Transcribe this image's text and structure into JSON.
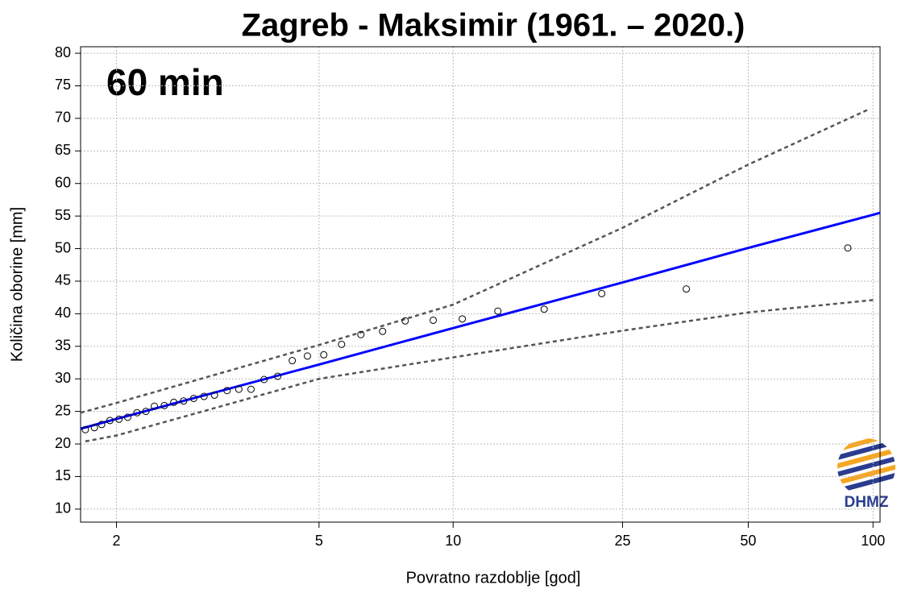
{
  "chart_data": {
    "type": "line",
    "title": "Zagreb - Maksimir (1961. – 2020.)",
    "annotation": "60 min",
    "logo_text": "DHMZ",
    "xlabel": "Povratno razdoblje [god]",
    "ylabel": "Količina oborine [mm]",
    "xscale": "gumbel",
    "xlim": [
      1.75,
      104
    ],
    "xticks": [
      2,
      5,
      10,
      25,
      50,
      100
    ],
    "ylim": [
      8,
      81
    ],
    "yticks": [
      10,
      15,
      20,
      25,
      30,
      35,
      40,
      45,
      50,
      55,
      60,
      65,
      70,
      75,
      80
    ],
    "grid": true,
    "series": [
      {
        "color": "#0000ff",
        "style": "solid",
        "x": [
          1.75,
          2,
          5,
          10,
          25,
          50,
          100,
          104
        ],
        "values": [
          22.35,
          23.85,
          32.2,
          37.8,
          44.8,
          50.1,
          55.2,
          55.5
        ]
      },
      {
        "color": "#555555",
        "style": "dashed",
        "x": [
          1.75,
          2,
          5,
          10,
          25,
          50,
          97
        ],
        "values": [
          24.8,
          26.3,
          35.2,
          41.4,
          53.2,
          62.9,
          71.3
        ]
      },
      {
        "color": "#555555",
        "style": "dashed",
        "x": [
          1.78,
          2,
          5,
          10,
          25,
          50,
          100
        ],
        "values": [
          20.4,
          21.3,
          30.0,
          33.3,
          37.4,
          40.2,
          42.1
        ]
      }
    ],
    "points": {
      "color": "#000000",
      "x": [
        86.9,
        35.5,
        22.3,
        16.3,
        12.7,
        10.5,
        9.0,
        7.77,
        6.91,
        6.18,
        5.6,
        5.12,
        4.72,
        4.38,
        4.08,
        3.82,
        3.59,
        3.39,
        3.21,
        3.03,
        2.89,
        2.76,
        2.64,
        2.53,
        2.43,
        2.33,
        2.25,
        2.17,
        2.09,
        2.02,
        1.95,
        1.89,
        1.84,
        1.78
      ],
      "values": [
        50.1,
        43.8,
        43.1,
        40.7,
        40.4,
        39.2,
        39.0,
        38.9,
        37.3,
        36.8,
        35.3,
        33.7,
        33.5,
        32.8,
        30.4,
        29.9,
        28.4,
        28.4,
        28.2,
        27.5,
        27.3,
        27.0,
        26.6,
        26.4,
        25.9,
        25.8,
        25.0,
        24.8,
        24.1,
        23.8,
        23.6,
        23.0,
        22.5,
        22.2
      ]
    }
  }
}
